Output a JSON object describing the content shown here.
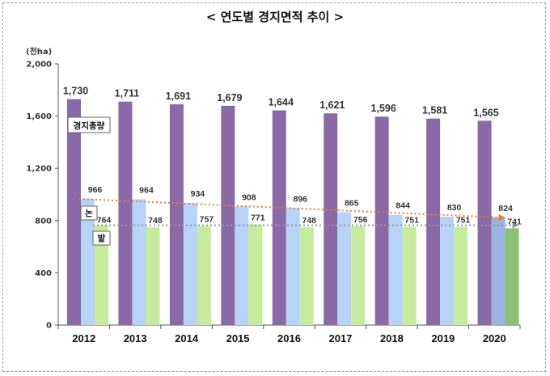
{
  "chart_data": {
    "type": "bar",
    "title": "< 연도별 경지면적 추이 >",
    "ylabel": "(천ha)",
    "xlabel": "",
    "ylim": [
      0,
      2000
    ],
    "yticks": [
      0,
      400,
      800,
      1200,
      1600,
      2000
    ],
    "yticklabels": [
      "0",
      "400",
      "800",
      "1,200",
      "1,600",
      "2,000"
    ],
    "categories": [
      "2012",
      "2013",
      "2014",
      "2015",
      "2016",
      "2017",
      "2018",
      "2019",
      "2020"
    ],
    "series": [
      {
        "name": "경지총량",
        "color": "#8a6aa6",
        "values": [
          1730,
          1711,
          1691,
          1679,
          1644,
          1621,
          1596,
          1581,
          1565
        ],
        "labels": [
          "1,730",
          "1,711",
          "1,691",
          "1,679",
          "1,644",
          "1,621",
          "1,596",
          "1,581",
          "1,565"
        ]
      },
      {
        "name": "논",
        "color": "#b7d3f7",
        "color_last": "#9bb4df",
        "values": [
          966,
          964,
          934,
          908,
          896,
          865,
          844,
          830,
          824
        ],
        "labels": [
          "966",
          "964",
          "934",
          "908",
          "896",
          "865",
          "844",
          "830",
          "824"
        ]
      },
      {
        "name": "밭",
        "color": "#c4ec9c",
        "color_last": "#8cbf78",
        "values": [
          764,
          748,
          757,
          771,
          748,
          756,
          751,
          751,
          741
        ],
        "labels": [
          "764",
          "748",
          "757",
          "771",
          "748",
          "756",
          "751",
          "751",
          "741"
        ]
      }
    ],
    "trendlines": [
      {
        "series": "논",
        "color": "#f07a30",
        "from": 966,
        "to": 824
      },
      {
        "series": "밭",
        "color": "#999999",
        "from": 764,
        "to": 764
      }
    ],
    "grid": false,
    "legend": "inline-tags"
  }
}
